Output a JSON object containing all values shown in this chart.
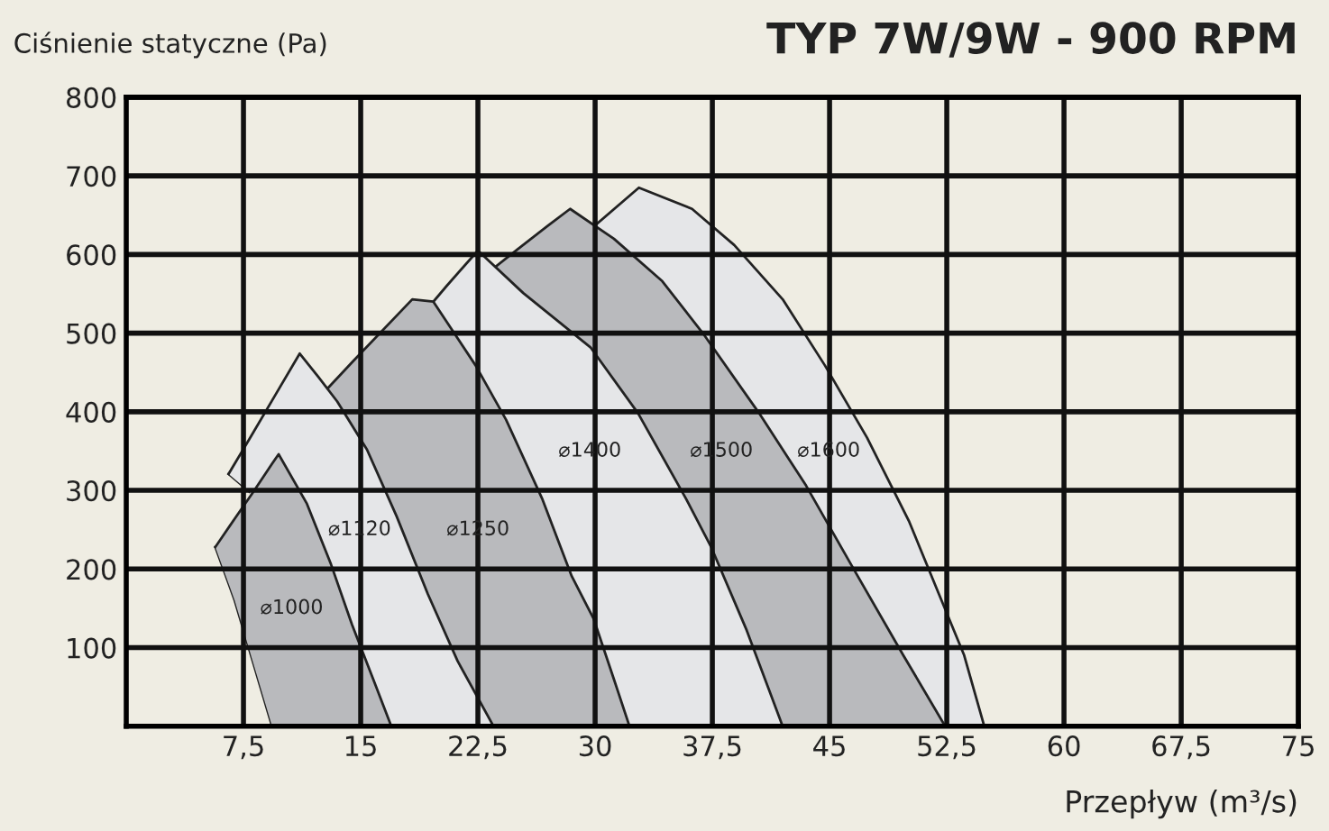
{
  "chart_data": {
    "type": "area",
    "title": "TYP 7W/9W - 900 RPM",
    "ylabel": "Ciśnienie statyczne (Pa)",
    "xlabel": "Przepływ (m³/s)",
    "xlim": [
      0,
      75
    ],
    "ylim": [
      0,
      800
    ],
    "xticks": [
      {
        "value": 7.5,
        "label": "7,5"
      },
      15,
      {
        "value": 22.5,
        "label": "22,5"
      },
      30,
      {
        "value": 37.5,
        "label": "37,5"
      },
      45,
      {
        "value": 52.5,
        "label": "52,5"
      },
      60,
      {
        "value": 67.5,
        "label": "67,5"
      },
      75
    ],
    "yticks": [
      100,
      200,
      300,
      400,
      500,
      600,
      700,
      800
    ],
    "grid": true,
    "series": [
      {
        "name": "⌀1000",
        "color": "#b9babd",
        "x": [
          5.7,
          6.94,
          8.09,
          9.33,
          9.75,
          11.56,
          13.1,
          14.45,
          15.8,
          16.96
        ],
        "values": [
          228,
          264,
          297,
          334,
          346,
          283,
          206,
          129,
          60,
          0
        ]
      },
      {
        "type": "line",
        "color": "#222222",
        "x": [
          5.7,
          6.94,
          8.09,
          9.33
        ],
        "values": [
          228,
          160,
          83,
          0
        ]
      },
      {
        "name": "⌀1120",
        "color": "#e5e6e8",
        "x": [
          6.55,
          7.9,
          9.5,
          11.1,
          12.3,
          13.5,
          15.4,
          17.3,
          19.3,
          21.2,
          23.5
        ],
        "values": [
          321,
          366,
          420,
          474,
          444,
          413,
          352,
          267,
          168,
          83,
          0
        ]
      },
      {
        "type": "line",
        "color": "#222222",
        "x": [
          6.55,
          7.9
        ],
        "values": [
          321,
          298
        ]
      },
      {
        "name": "⌀1250",
        "color": "#b9babd",
        "x": [
          12.8,
          14.5,
          18.3,
          19.65,
          22.35,
          24.3,
          26.6,
          28.5,
          29.9,
          31.2,
          32.2
        ],
        "values": [
          428,
          464,
          543,
          540,
          459,
          390,
          290,
          191,
          137,
          60,
          0
        ]
      },
      {
        "name": "⌀1400",
        "color": "#e5e6e8",
        "x": [
          19.65,
          20.5,
          22.5,
          25.4,
          29.7,
          32.75,
          35.8,
          37.4,
          39.7,
          42.0
        ],
        "values": [
          540,
          560,
          605,
          551,
          482,
          398,
          290,
          229,
          122,
          0
        ]
      },
      {
        "name": "⌀1500",
        "color": "#b9babd",
        "x": [
          23.6,
          25,
          27,
          28.4,
          31.2,
          34.3,
          37.0,
          40.5,
          43.5,
          46.6,
          49.7,
          52.4
        ],
        "values": [
          584,
          606,
          637,
          658,
          620,
          566,
          497,
          398,
          306,
          198,
          91,
          0
        ]
      },
      {
        "name": "⌀1600",
        "color": "#e5e6e8",
        "x": [
          30.0,
          32.8,
          36.2,
          38.9,
          42.0,
          44.7,
          47.4,
          50.1,
          52.0,
          53.6,
          54.9
        ],
        "values": [
          637,
          685,
          658,
          612,
          543,
          459,
          367,
          260,
          168,
          91,
          0
        ]
      }
    ]
  }
}
